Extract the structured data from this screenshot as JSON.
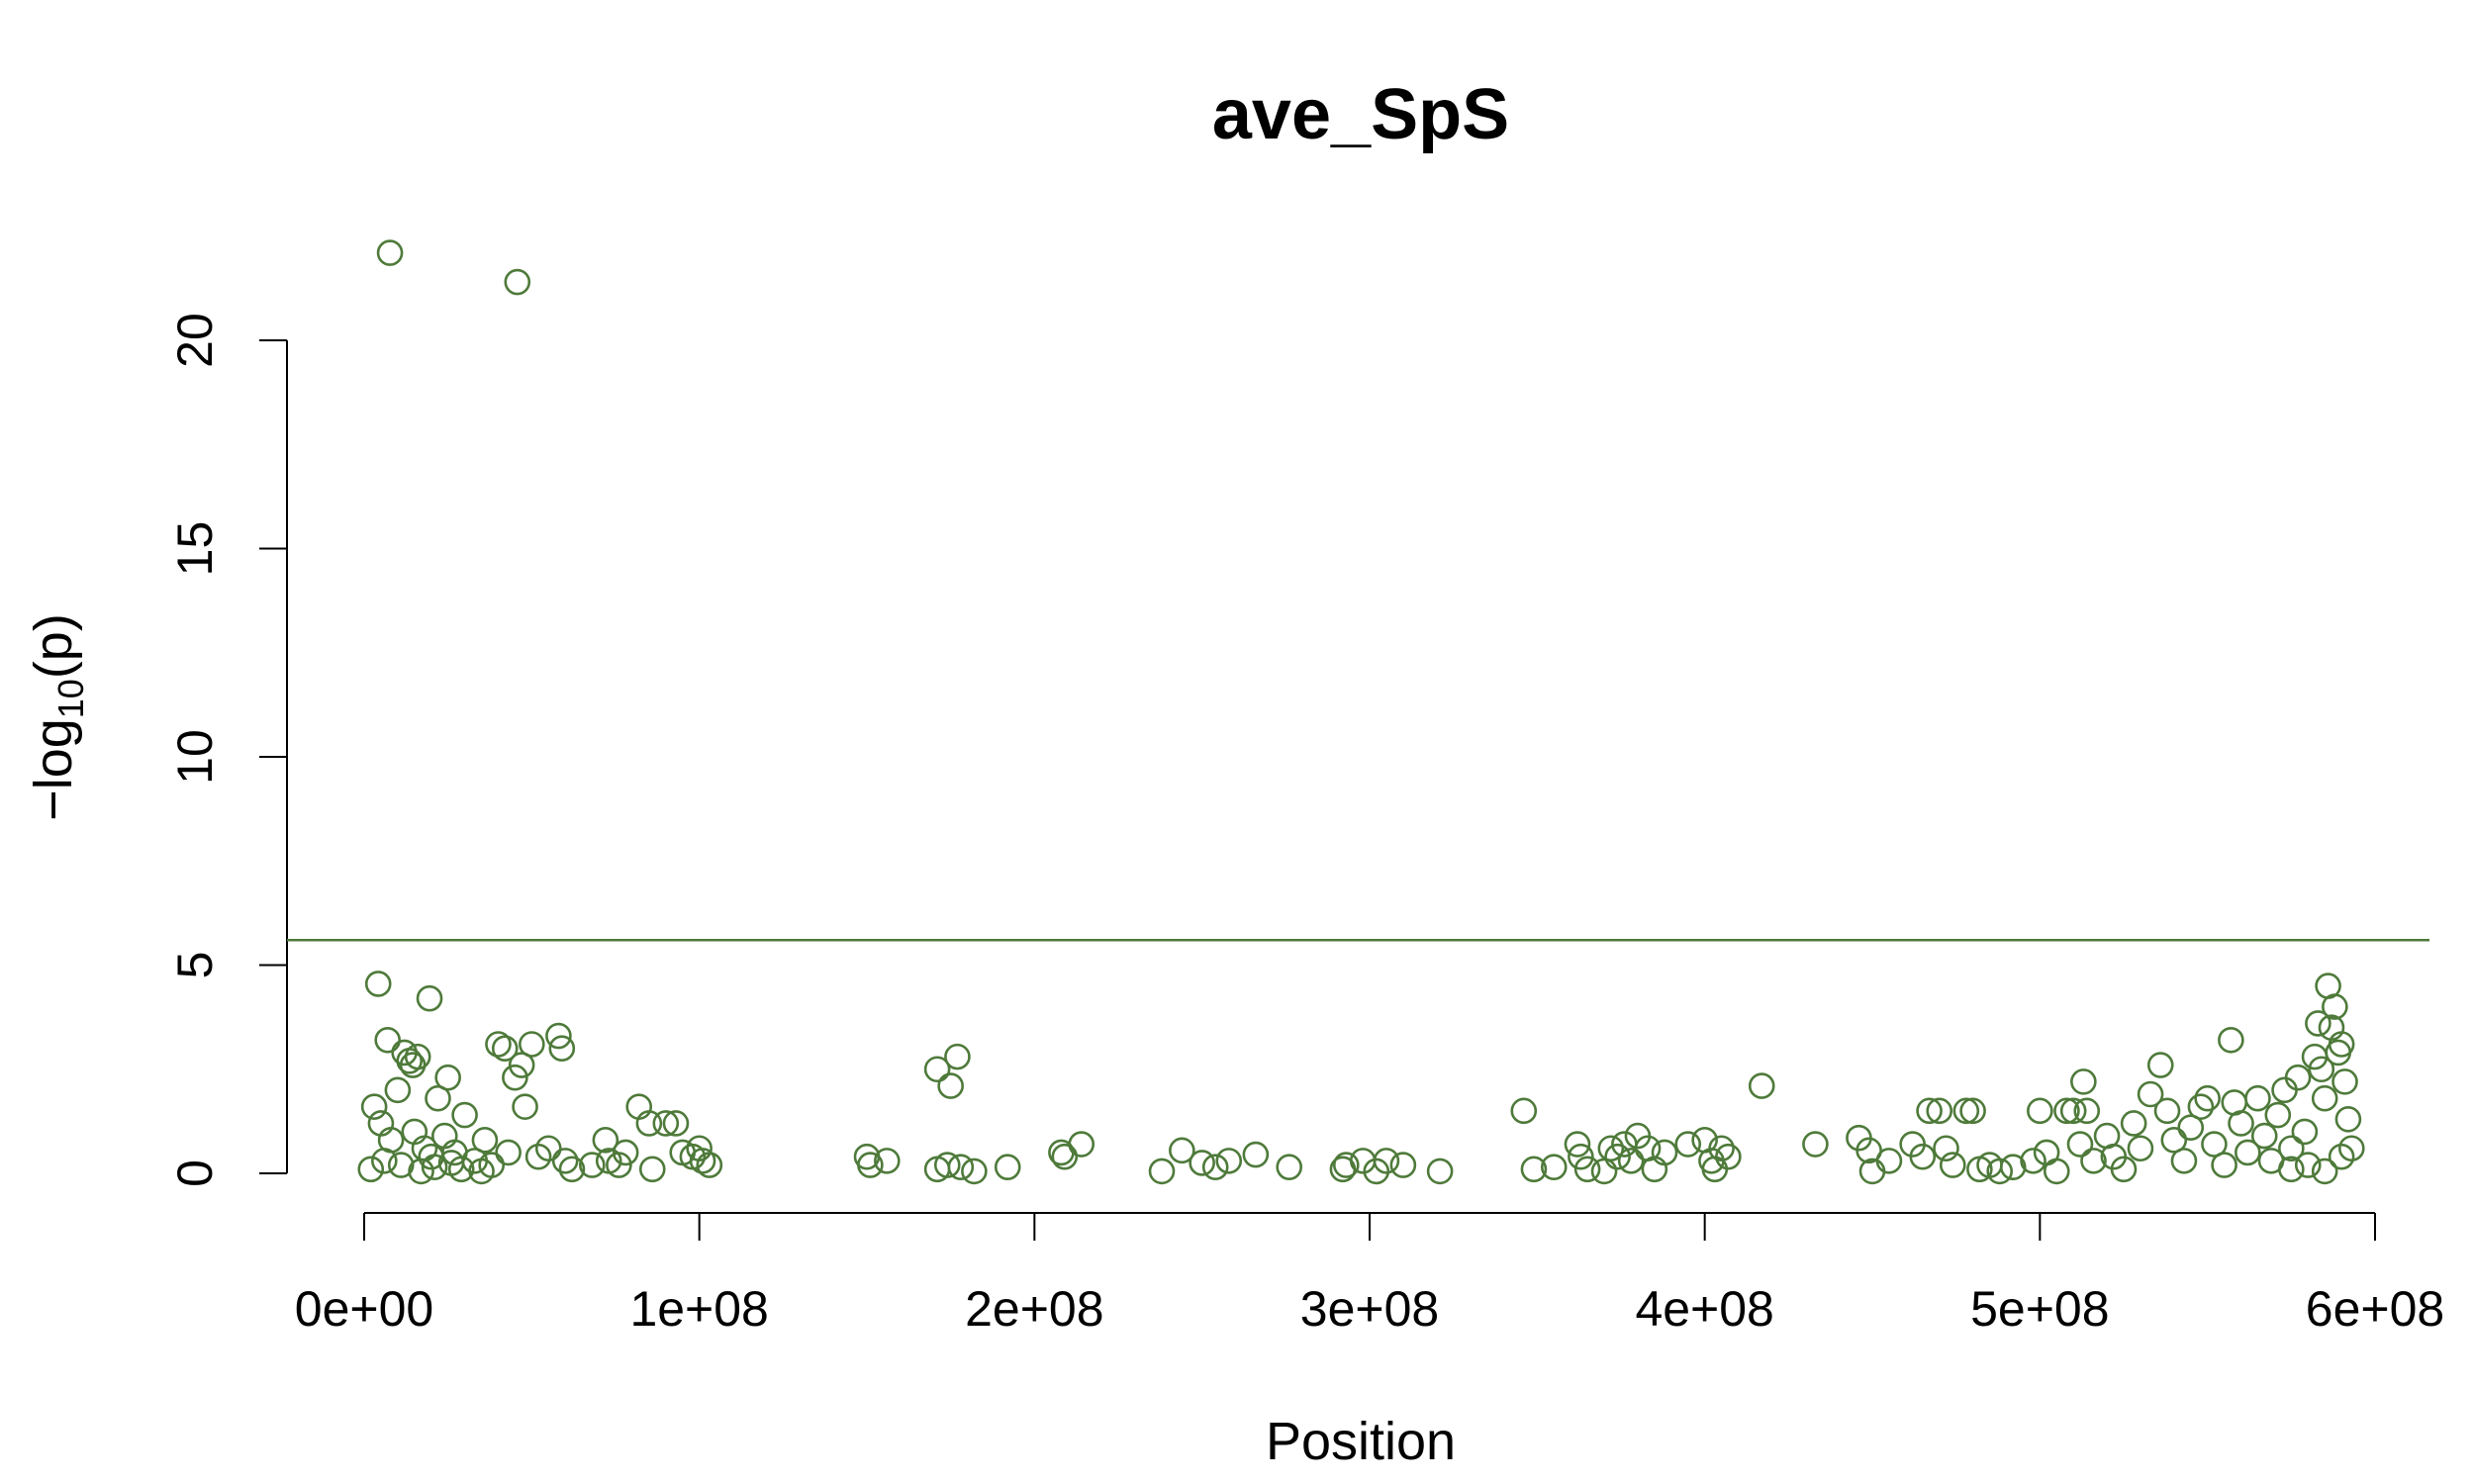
{
  "chart_data": {
    "type": "scatter",
    "title": "ave_SpS",
    "xlabel": "Position",
    "ylabel_prefix": "−log",
    "ylabel_sub": "10",
    "ylabel_suffix": "(p)",
    "xlim": [
      0,
      600000000
    ],
    "ylim": [
      0,
      20
    ],
    "x_ticks": [
      0,
      100000000,
      200000000,
      300000000,
      400000000,
      500000000,
      600000000
    ],
    "x_tick_labels": [
      "0e+00",
      "1e+08",
      "2e+08",
      "3e+08",
      "4e+08",
      "5e+08",
      "6e+08"
    ],
    "y_ticks": [
      0,
      5,
      10,
      15,
      20
    ],
    "y_tick_labels": [
      "0",
      "5",
      "10",
      "15",
      "20"
    ],
    "threshold": 5.6,
    "grid": false,
    "colors": {
      "points": "#4e7a3a",
      "threshold": "#4e7a3a",
      "axis": "#000000"
    },
    "points": [
      [
        7700000,
        22.1
      ],
      [
        45700000,
        21.4
      ],
      [
        4200000,
        4.55
      ],
      [
        19500000,
        4.2
      ],
      [
        7000000,
        3.2
      ],
      [
        12000000,
        2.9
      ],
      [
        13500000,
        2.7
      ],
      [
        14500000,
        2.6
      ],
      [
        16000000,
        2.8
      ],
      [
        25000000,
        2.3
      ],
      [
        40000000,
        3.1
      ],
      [
        42000000,
        3.0
      ],
      [
        47000000,
        2.6
      ],
      [
        50000000,
        3.1
      ],
      [
        58000000,
        3.3
      ],
      [
        59000000,
        3.0
      ],
      [
        45000000,
        2.3
      ],
      [
        48000000,
        1.6
      ],
      [
        30000000,
        1.4
      ],
      [
        22000000,
        1.8
      ],
      [
        10000000,
        2.0
      ],
      [
        3000000,
        1.6
      ],
      [
        5000000,
        1.2
      ],
      [
        8000000,
        0.8
      ],
      [
        15000000,
        1.0
      ],
      [
        18000000,
        0.6
      ],
      [
        20000000,
        0.4
      ],
      [
        24000000,
        0.9
      ],
      [
        27000000,
        0.5
      ],
      [
        33000000,
        0.3
      ],
      [
        36000000,
        0.8
      ],
      [
        38000000,
        0.2
      ],
      [
        43000000,
        0.5
      ],
      [
        52000000,
        0.4
      ],
      [
        55000000,
        0.6
      ],
      [
        60000000,
        0.3
      ],
      [
        62000000,
        0.1
      ],
      [
        2000000,
        0.1
      ],
      [
        6000000,
        0.3
      ],
      [
        11000000,
        0.2
      ],
      [
        17000000,
        0.05
      ],
      [
        21000000,
        0.15
      ],
      [
        26000000,
        0.25
      ],
      [
        29000000,
        0.1
      ],
      [
        35000000,
        0.05
      ],
      [
        72000000,
        0.8
      ],
      [
        73000000,
        0.3
      ],
      [
        76000000,
        0.2
      ],
      [
        78000000,
        0.5
      ],
      [
        82000000,
        1.6
      ],
      [
        85000000,
        1.2
      ],
      [
        90000000,
        1.2
      ],
      [
        93000000,
        1.2
      ],
      [
        95000000,
        0.5
      ],
      [
        98000000,
        0.4
      ],
      [
        100000000,
        0.6
      ],
      [
        101000000,
        0.3
      ],
      [
        103000000,
        0.2
      ],
      [
        86000000,
        0.1
      ],
      [
        68000000,
        0.2
      ],
      [
        150000000,
        0.4
      ],
      [
        151000000,
        0.2
      ],
      [
        156000000,
        0.3
      ],
      [
        171000000,
        2.5
      ],
      [
        175000000,
        2.1
      ],
      [
        177000000,
        2.8
      ],
      [
        171000000,
        0.1
      ],
      [
        174000000,
        0.2
      ],
      [
        178000000,
        0.15
      ],
      [
        182000000,
        0.05
      ],
      [
        192000000,
        0.15
      ],
      [
        208000000,
        0.5
      ],
      [
        209000000,
        0.4
      ],
      [
        214000000,
        0.7
      ],
      [
        238000000,
        0.05
      ],
      [
        244000000,
        0.55
      ],
      [
        250000000,
        0.25
      ],
      [
        254000000,
        0.15
      ],
      [
        258000000,
        0.3
      ],
      [
        266000000,
        0.45
      ],
      [
        276000000,
        0.15
      ],
      [
        292000000,
        0.1
      ],
      [
        293000000,
        0.2
      ],
      [
        298000000,
        0.3
      ],
      [
        302000000,
        0.05
      ],
      [
        305000000,
        0.3
      ],
      [
        310000000,
        0.2
      ],
      [
        321000000,
        0.05
      ],
      [
        346000000,
        1.5
      ],
      [
        349000000,
        0.1
      ],
      [
        355000000,
        0.15
      ],
      [
        362000000,
        0.7
      ],
      [
        363000000,
        0.4
      ],
      [
        365000000,
        0.1
      ],
      [
        370000000,
        0.05
      ],
      [
        372000000,
        0.6
      ],
      [
        374000000,
        0.4
      ],
      [
        376000000,
        0.7
      ],
      [
        378000000,
        0.3
      ],
      [
        380000000,
        0.9
      ],
      [
        383000000,
        0.6
      ],
      [
        385000000,
        0.1
      ],
      [
        388000000,
        0.5
      ],
      [
        395000000,
        0.7
      ],
      [
        400000000,
        0.8
      ],
      [
        402000000,
        0.3
      ],
      [
        403000000,
        0.1
      ],
      [
        405000000,
        0.6
      ],
      [
        407000000,
        0.4
      ],
      [
        417000000,
        2.1
      ],
      [
        433000000,
        0.7
      ],
      [
        446000000,
        0.85
      ],
      [
        449000000,
        0.55
      ],
      [
        450000000,
        0.05
      ],
      [
        455000000,
        0.3
      ],
      [
        462000000,
        0.7
      ],
      [
        465000000,
        0.4
      ],
      [
        467000000,
        1.5
      ],
      [
        470000000,
        1.5
      ],
      [
        472000000,
        0.6
      ],
      [
        474000000,
        0.2
      ],
      [
        478000000,
        1.5
      ],
      [
        480000000,
        1.5
      ],
      [
        482000000,
        0.1
      ],
      [
        485000000,
        0.2
      ],
      [
        488000000,
        0.05
      ],
      [
        492000000,
        0.15
      ],
      [
        498000000,
        0.3
      ],
      [
        500000000,
        1.5
      ],
      [
        502000000,
        0.5
      ],
      [
        505000000,
        0.05
      ],
      [
        508000000,
        1.5
      ],
      [
        510000000,
        1.5
      ],
      [
        512000000,
        0.7
      ],
      [
        513000000,
        2.2
      ],
      [
        514000000,
        1.5
      ],
      [
        516000000,
        0.3
      ],
      [
        520000000,
        0.9
      ],
      [
        522000000,
        0.4
      ],
      [
        525000000,
        0.1
      ],
      [
        528000000,
        1.2
      ],
      [
        530000000,
        0.6
      ],
      [
        533000000,
        1.9
      ],
      [
        536000000,
        2.6
      ],
      [
        538000000,
        1.5
      ],
      [
        540000000,
        0.8
      ],
      [
        543000000,
        0.3
      ],
      [
        545000000,
        1.1
      ],
      [
        548000000,
        1.6
      ],
      [
        550000000,
        1.8
      ],
      [
        552000000,
        0.7
      ],
      [
        555000000,
        0.2
      ],
      [
        557000000,
        3.2
      ],
      [
        558000000,
        1.7
      ],
      [
        560000000,
        1.2
      ],
      [
        562000000,
        0.5
      ],
      [
        565000000,
        1.8
      ],
      [
        567000000,
        0.9
      ],
      [
        569000000,
        0.3
      ],
      [
        571000000,
        1.4
      ],
      [
        573000000,
        2.0
      ],
      [
        575000000,
        0.6
      ],
      [
        577000000,
        2.3
      ],
      [
        579000000,
        1.0
      ],
      [
        580000000,
        0.2
      ],
      [
        582000000,
        2.8
      ],
      [
        583000000,
        3.6
      ],
      [
        584000000,
        2.5
      ],
      [
        585000000,
        1.8
      ],
      [
        586000000,
        4.5
      ],
      [
        587000000,
        3.5
      ],
      [
        588000000,
        4.0
      ],
      [
        589000000,
        2.9
      ],
      [
        590000000,
        3.1
      ],
      [
        591000000,
        2.2
      ],
      [
        592000000,
        1.3
      ],
      [
        593000000,
        0.6
      ],
      [
        585000000,
        0.05
      ],
      [
        590000000,
        0.4
      ],
      [
        575000000,
        0.1
      ]
    ]
  }
}
